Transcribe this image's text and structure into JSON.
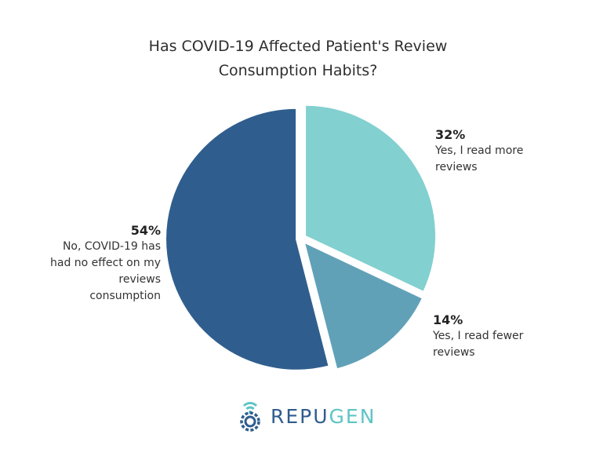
{
  "chart_data": {
    "type": "pie",
    "title_lines": [
      "Has COVID-19 Affected Patient's Review",
      "Consumption Habits?"
    ],
    "slices": [
      {
        "pct_label": "32%",
        "value": 32,
        "label_lines": [
          "Yes, I read more",
          "reviews"
        ],
        "color": "#82d0cf"
      },
      {
        "pct_label": "14%",
        "value": 14,
        "label_lines": [
          "Yes, I read fewer",
          "reviews"
        ],
        "color": "#61a1b8"
      },
      {
        "pct_label": "54%",
        "value": 54,
        "label_lines": [
          "No, COVID-19 has",
          "had no effect on my",
          "reviews",
          "consumption"
        ],
        "color": "#2f5e8e"
      }
    ]
  },
  "brand": {
    "name_part1": "REPU",
    "name_part2": "GEN",
    "color_primary": "#2f5d8e",
    "color_accent": "#5fc4c4"
  }
}
